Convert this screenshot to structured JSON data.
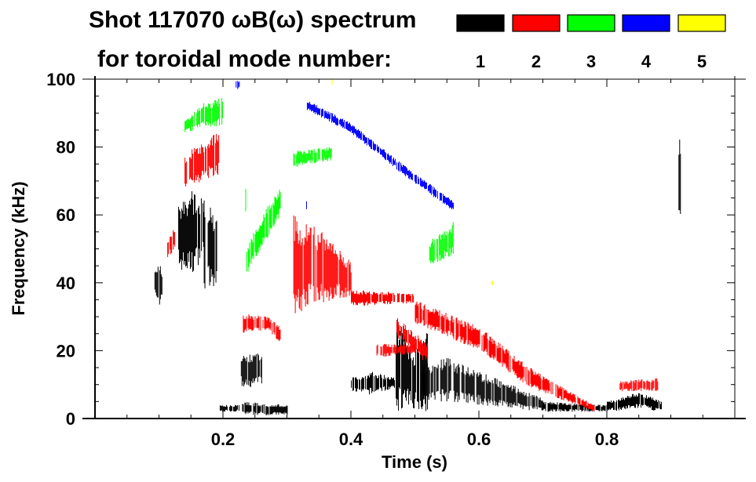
{
  "chart_data": {
    "type": "heatmap",
    "title_line1": "Shot 117070 ωB(ω) spectrum",
    "title_line2": "for toroidal mode number:",
    "xlabel": "Time (s)",
    "ylabel": "Frequency (kHz)",
    "xlim": [
      0,
      1.0
    ],
    "ylim": [
      0,
      100
    ],
    "xticks": [
      "0.2",
      "0.4",
      "0.6",
      "0.8"
    ],
    "xtick_values": [
      0.2,
      0.4,
      0.6,
      0.8
    ],
    "yticks": [
      "0",
      "20",
      "40",
      "60",
      "80",
      "100"
    ],
    "ytick_values": [
      0,
      20,
      40,
      60,
      80,
      100
    ],
    "legend": [
      {
        "label": "1",
        "color": "#000000"
      },
      {
        "label": "2",
        "color": "#ff0000"
      },
      {
        "label": "3",
        "color": "#00ff00"
      },
      {
        "label": "4",
        "color": "#0000ff"
      },
      {
        "label": "5",
        "color": "#ffff00"
      }
    ],
    "features": [
      {
        "mode": "1",
        "t": [
          0.093,
          0.1,
          0.105
        ],
        "lo": [
          38,
          30,
          36
        ],
        "hi": [
          45,
          46,
          44
        ]
      },
      {
        "mode": "1",
        "t": [
          0.13,
          0.15,
          0.17
        ],
        "lo": [
          44,
          42,
          48
        ],
        "hi": [
          62,
          68,
          64
        ]
      },
      {
        "mode": "1",
        "t": [
          0.17,
          0.19
        ],
        "lo": [
          38,
          36
        ],
        "hi": [
          66,
          62
        ]
      },
      {
        "mode": "1",
        "t": [
          0.195,
          0.225
        ],
        "lo": [
          2,
          2
        ],
        "hi": [
          4,
          4
        ]
      },
      {
        "mode": "1",
        "t": [
          0.228,
          0.26
        ],
        "lo": [
          8,
          10
        ],
        "hi": [
          20,
          19
        ]
      },
      {
        "mode": "1",
        "t": [
          0.23,
          0.3
        ],
        "lo": [
          1,
          1
        ],
        "hi": [
          5,
          4
        ]
      },
      {
        "mode": "1",
        "t": [
          0.4,
          0.43,
          0.47
        ],
        "lo": [
          8,
          7,
          9
        ],
        "hi": [
          12,
          14,
          12
        ]
      },
      {
        "mode": "1",
        "t": [
          0.47,
          0.5,
          0.52
        ],
        "lo": [
          2,
          3,
          2
        ],
        "hi": [
          30,
          20,
          26
        ]
      },
      {
        "mode": "1",
        "t": [
          0.51,
          0.55,
          0.6,
          0.65,
          0.7
        ],
        "lo": [
          5,
          5,
          4,
          3,
          2
        ],
        "hi": [
          16,
          18,
          14,
          10,
          6
        ]
      },
      {
        "mode": "1",
        "t": [
          0.7,
          0.8
        ],
        "lo": [
          2,
          2
        ],
        "hi": [
          5,
          4
        ]
      },
      {
        "mode": "1",
        "t": [
          0.8,
          0.85,
          0.885
        ],
        "lo": [
          2,
          3,
          2
        ],
        "hi": [
          5,
          8,
          5
        ]
      },
      {
        "mode": "1",
        "t": [
          0.912,
          0.918
        ],
        "lo": [
          53,
          55
        ],
        "hi": [
          83,
          80
        ]
      },
      {
        "mode": "2",
        "t": [
          0.113,
          0.125
        ],
        "lo": [
          47,
          50
        ],
        "hi": [
          53,
          57
        ]
      },
      {
        "mode": "2",
        "t": [
          0.14,
          0.17,
          0.195
        ],
        "lo": [
          68,
          70,
          72
        ],
        "hi": [
          78,
          82,
          86
        ]
      },
      {
        "mode": "2",
        "t": [
          0.23,
          0.27,
          0.29
        ],
        "lo": [
          25,
          26,
          22
        ],
        "hi": [
          31,
          30,
          27
        ]
      },
      {
        "mode": "2",
        "t": [
          0.31,
          0.35,
          0.4
        ],
        "lo": [
          30,
          34,
          36
        ],
        "hi": [
          60,
          56,
          46
        ]
      },
      {
        "mode": "2",
        "t": [
          0.4,
          0.5
        ],
        "lo": [
          33,
          34
        ],
        "hi": [
          38,
          37
        ]
      },
      {
        "mode": "2",
        "t": [
          0.5,
          0.6,
          0.68,
          0.75,
          0.78
        ],
        "lo": [
          28,
          20,
          9,
          4,
          2
        ],
        "hi": [
          35,
          27,
          15,
          7,
          4
        ]
      },
      {
        "mode": "2",
        "t": [
          0.44,
          0.5
        ],
        "lo": [
          18,
          19
        ],
        "hi": [
          22,
          22
        ]
      },
      {
        "mode": "2",
        "t": [
          0.47,
          0.52
        ],
        "lo": [
          24,
          16
        ],
        "hi": [
          30,
          22
        ]
      },
      {
        "mode": "2",
        "t": [
          0.82,
          0.88
        ],
        "lo": [
          8,
          8
        ],
        "hi": [
          11,
          12
        ]
      },
      {
        "mode": "3",
        "t": [
          0.14,
          0.17,
          0.2
        ],
        "lo": [
          84,
          86,
          86
        ],
        "hi": [
          88,
          93,
          95
        ]
      },
      {
        "mode": "3",
        "t": [
          0.235,
          0.26,
          0.29
        ],
        "lo": [
          42,
          50,
          60
        ],
        "hi": [
          50,
          60,
          68
        ]
      },
      {
        "mode": "3",
        "t": [
          0.31,
          0.37
        ],
        "lo": [
          74,
          76
        ],
        "hi": [
          79,
          80
        ]
      },
      {
        "mode": "3",
        "t": [
          0.52,
          0.56
        ],
        "lo": [
          45,
          48
        ],
        "hi": [
          52,
          58
        ]
      },
      {
        "mode": "4",
        "t": [
          0.33,
          0.4,
          0.48,
          0.56
        ],
        "lo": [
          91,
          84,
          72,
          61
        ],
        "hi": [
          94,
          87,
          75,
          64
        ]
      },
      {
        "mode": "4",
        "t": [
          0.22,
          0.225
        ],
        "lo": [
          97,
          97
        ],
        "hi": [
          100,
          100
        ]
      },
      {
        "mode": "5",
        "t": [
          0.37,
          0.372
        ],
        "lo": [
          98,
          98
        ],
        "hi": [
          100,
          100
        ]
      },
      {
        "mode": "5",
        "t": [
          0.62,
          0.622
        ],
        "lo": [
          39,
          39
        ],
        "hi": [
          41,
          41
        ]
      }
    ]
  }
}
